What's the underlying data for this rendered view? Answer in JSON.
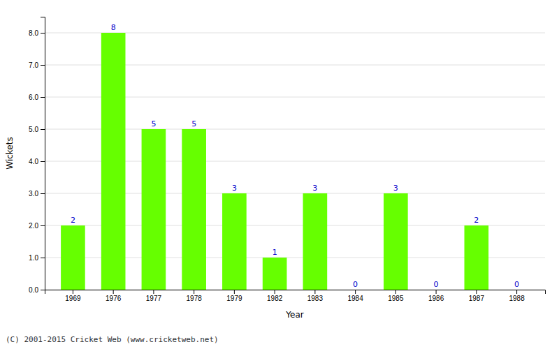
{
  "chart_data": {
    "type": "bar",
    "categories": [
      "1969",
      "1976",
      "1977",
      "1978",
      "1979",
      "1982",
      "1983",
      "1984",
      "1985",
      "1986",
      "1987",
      "1988"
    ],
    "values": [
      2,
      8,
      5,
      5,
      3,
      1,
      3,
      0,
      3,
      0,
      2,
      0
    ],
    "color": "#66ff00",
    "x_label": "Year",
    "y_label": "Wickets",
    "ylim": [
      0,
      8.5
    ],
    "yticks": [
      {
        "value": 0.0,
        "label": "0.0"
      },
      {
        "value": 1.0,
        "label": "1.0"
      },
      {
        "value": 2.0,
        "label": "2.0"
      },
      {
        "value": 3.0,
        "label": "3.0"
      },
      {
        "value": 4.0,
        "label": "4.0"
      },
      {
        "value": 5.0,
        "label": "5.0"
      },
      {
        "value": 6.0,
        "label": "6.0"
      },
      {
        "value": 7.0,
        "label": "7.0"
      },
      {
        "value": 8.0,
        "label": "8.0"
      }
    ],
    "grid": true,
    "data_labels": true,
    "footnote": "(C) 2001-2015 Cricket Web (www.cricketweb.net)"
  }
}
